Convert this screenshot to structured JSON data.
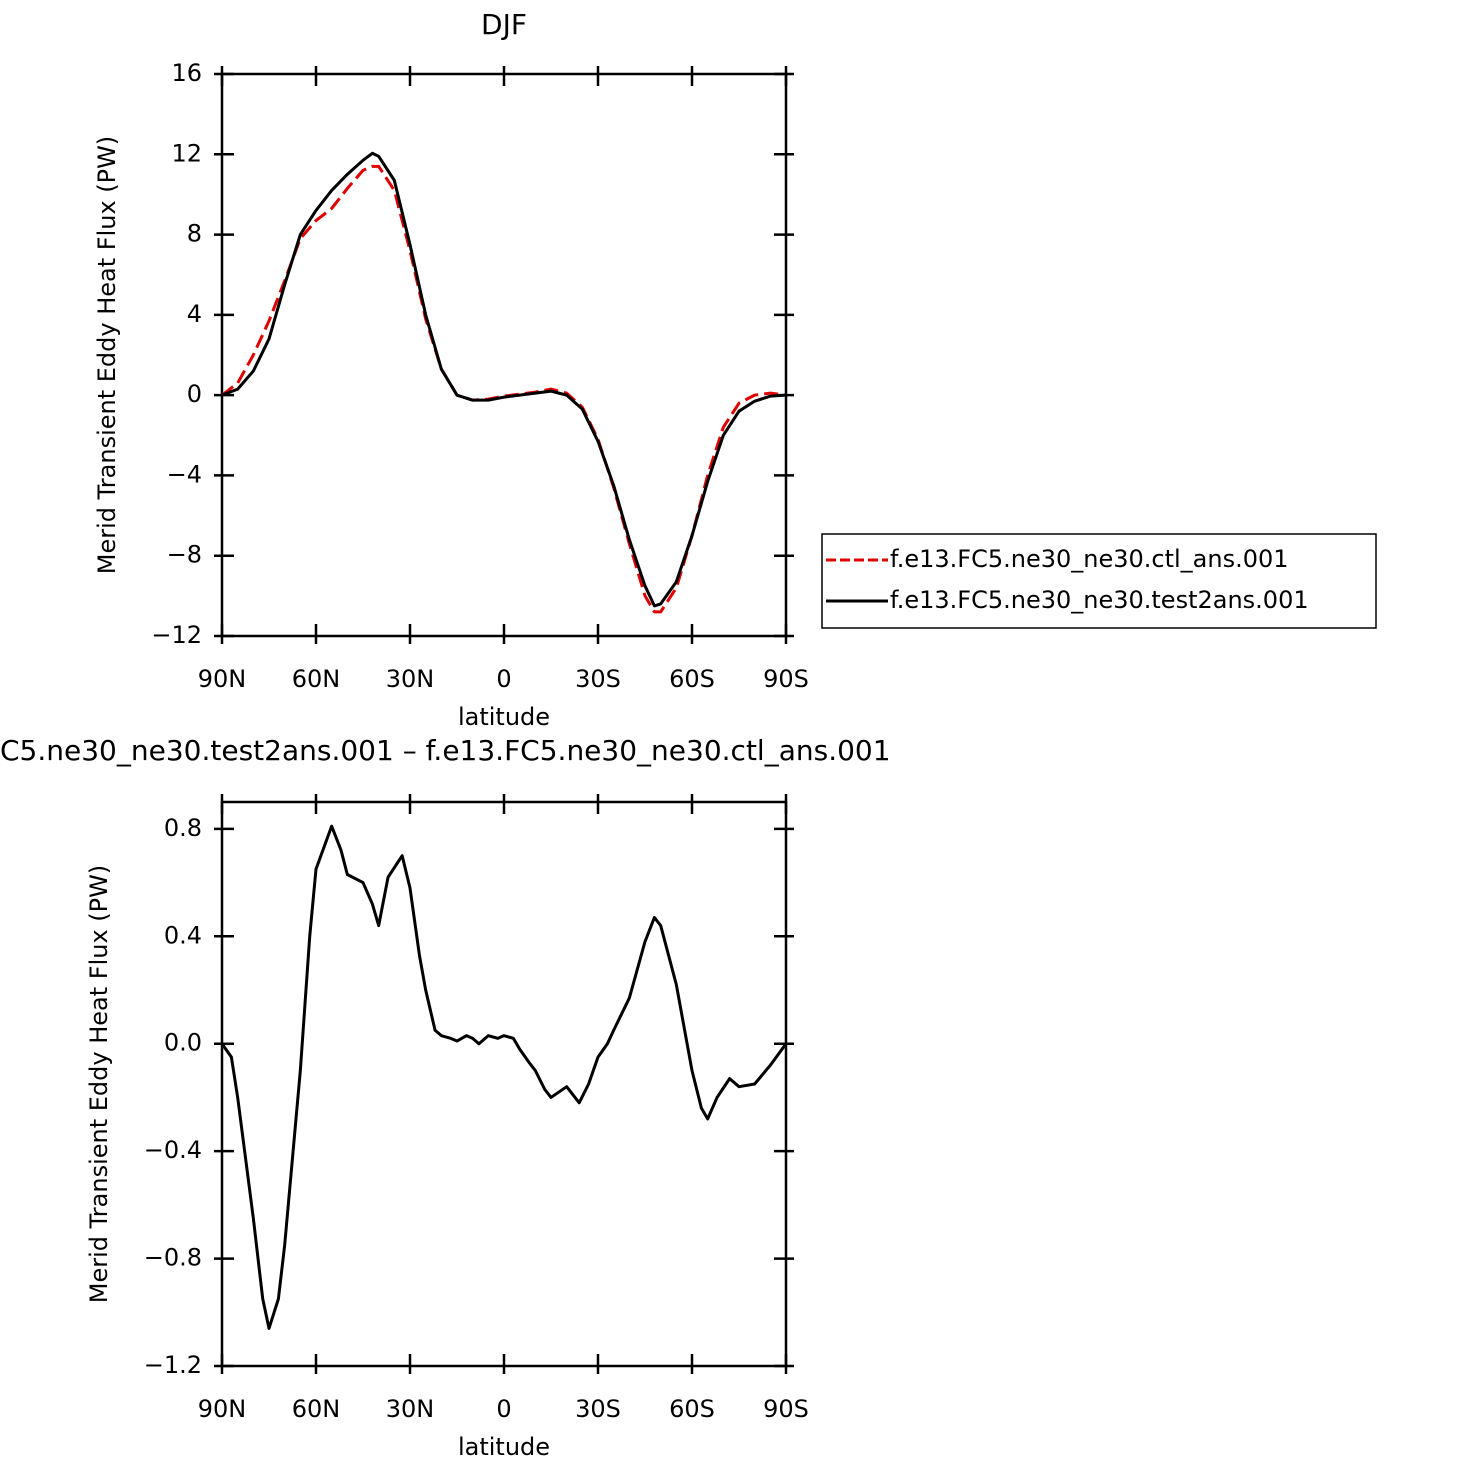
{
  "chart_data": [
    {
      "type": "line",
      "title": "DJF",
      "x_label": "latitude",
      "y_label": "Merid Transient Eddy Heat Flux (PW)",
      "x": [
        90,
        85,
        80,
        75,
        70,
        65,
        60,
        55,
        50,
        45,
        42,
        40,
        35,
        30,
        25,
        20,
        15,
        10,
        5,
        0,
        -5,
        -10,
        -15,
        -20,
        -25,
        -30,
        -35,
        -40,
        -45,
        -48,
        -50,
        -55,
        -60,
        -65,
        -70,
        -75,
        -80,
        -85,
        -90
      ],
      "series": [
        {
          "name": "f.e13.FC5.ne30_ne30.ctl_ans.001",
          "color": "#e00000",
          "line_style": "dashed",
          "values": [
            0,
            0.6,
            2.0,
            3.7,
            5.7,
            7.8,
            8.7,
            9.3,
            10.3,
            11.2,
            11.4,
            11.4,
            10.2,
            7.2,
            3.8,
            1.3,
            0,
            -0.25,
            -0.2,
            -0.05,
            0.05,
            0.15,
            0.3,
            0.1,
            -0.6,
            -2.2,
            -4.6,
            -7.4,
            -10.0,
            -10.8,
            -10.8,
            -9.6,
            -7.0,
            -4.0,
            -1.6,
            -0.4,
            0.0,
            0.1,
            0
          ]
        },
        {
          "name": "f.e13.FC5.ne30_ne30.test2ans.001",
          "color": "#000000",
          "line_style": "solid",
          "values": [
            0,
            0.3,
            1.2,
            2.8,
            5.5,
            8.0,
            9.2,
            10.2,
            11.0,
            11.7,
            12.05,
            11.9,
            10.7,
            7.5,
            4.0,
            1.3,
            0,
            -0.25,
            -0.25,
            -0.1,
            0.0,
            0.1,
            0.2,
            0.0,
            -0.7,
            -2.3,
            -4.5,
            -7.2,
            -9.5,
            -10.5,
            -10.4,
            -9.3,
            -7.0,
            -4.3,
            -2.0,
            -0.8,
            -0.3,
            -0.05,
            0
          ]
        }
      ],
      "xlim": [
        90,
        -90
      ],
      "xticks": [
        {
          "value": 90,
          "label": "90N"
        },
        {
          "value": 60,
          "label": "60N"
        },
        {
          "value": 30,
          "label": "30N"
        },
        0,
        {
          "value": -30,
          "label": "30S"
        },
        {
          "value": -60,
          "label": "60S"
        },
        {
          "value": -90,
          "label": "90S"
        }
      ],
      "ylim": [
        -12,
        16
      ],
      "yticks": [
        16,
        12,
        8,
        4,
        0,
        {
          "value": -4,
          "label": "−4"
        },
        {
          "value": -8,
          "label": "−8"
        },
        {
          "value": -12,
          "label": "−12"
        }
      ],
      "legend": "right"
    },
    {
      "type": "line",
      "title": "C5.ne30_ne30.test2ans.001 – f.e13.FC5.ne30_ne30.ctl_ans.001",
      "x_label": "latitude",
      "y_label": "Merid Transient Eddy Heat Flux (PW)",
      "x": [
        90,
        87,
        85,
        80,
        77,
        75,
        72,
        70,
        65,
        62,
        60,
        55,
        52,
        50,
        45,
        42,
        40,
        37,
        32.5,
        30,
        27,
        25,
        22,
        20,
        17,
        15,
        12,
        10,
        8,
        5,
        2,
        0,
        -3,
        -5,
        -8,
        -10,
        -13,
        -15,
        -20,
        -24,
        -27,
        -30,
        -33,
        -35,
        -40,
        -45,
        -48,
        -50,
        -55,
        -60,
        -63,
        -65,
        -68,
        -72,
        -75,
        -80,
        -85,
        -90
      ],
      "color": "#000000",
      "values": [
        0,
        -0.05,
        -0.2,
        -0.65,
        -0.95,
        -1.06,
        -0.95,
        -0.75,
        -0.1,
        0.4,
        0.65,
        0.81,
        0.72,
        0.63,
        0.6,
        0.52,
        0.44,
        0.62,
        0.7,
        0.58,
        0.33,
        0.2,
        0.05,
        0.03,
        0.02,
        0.01,
        0.03,
        0.02,
        0.0,
        0.03,
        0.02,
        0.03,
        0.02,
        -0.02,
        -0.07,
        -0.1,
        -0.17,
        -0.2,
        -0.16,
        -0.22,
        -0.15,
        -0.05,
        0.0,
        0.05,
        0.17,
        0.38,
        0.47,
        0.44,
        0.22,
        -0.1,
        -0.24,
        -0.28,
        -0.2,
        -0.13,
        -0.16,
        -0.15,
        -0.08,
        0
      ],
      "xlim": [
        90,
        -90
      ],
      "xticks": [
        {
          "value": 90,
          "label": "90N"
        },
        {
          "value": 60,
          "label": "60N"
        },
        {
          "value": 30,
          "label": "30N"
        },
        0,
        {
          "value": -30,
          "label": "30S"
        },
        {
          "value": -60,
          "label": "60S"
        },
        {
          "value": -90,
          "label": "90S"
        }
      ],
      "ylim": [
        -1.2,
        0.9
      ],
      "yticks": [
        0.8,
        0.4,
        {
          "value": 0,
          "label": "0.0"
        },
        {
          "value": -0.4,
          "label": "−0.4"
        },
        {
          "value": -0.8,
          "label": "−0.8"
        },
        {
          "value": -1.2,
          "label": "−1.2"
        }
      ]
    }
  ]
}
